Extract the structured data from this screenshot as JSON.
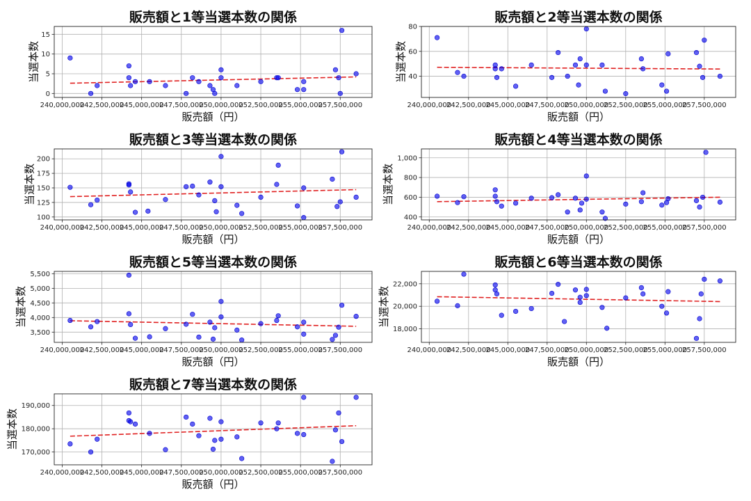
{
  "chart_data": [
    {
      "type": "scatter",
      "title": "販売額と1等当選本数の関係",
      "xlabel": "販売額（円）",
      "ylabel": "当選本数",
      "xlim": [
        239500000,
        259500000
      ],
      "xticks": [
        240000000,
        242500000,
        245000000,
        247500000,
        250000000,
        252500000,
        255000000,
        257500000
      ],
      "ylim": [
        -1,
        17
      ],
      "yticks": [
        0,
        5,
        10,
        15
      ],
      "grid": true,
      "series": [
        {
          "name": "当選本数",
          "x": [
            240500000,
            241800000,
            242200000,
            244200000,
            244200000,
            244300000,
            244600000,
            245500000,
            246500000,
            247800000,
            248200000,
            248600000,
            249300000,
            249500000,
            249600000,
            250000000,
            250000000,
            251000000,
            252500000,
            253500000,
            253600000,
            254800000,
            255200000,
            255200000,
            257200000,
            257400000,
            257500000,
            257600000,
            258500000
          ],
          "y": [
            9,
            0,
            2,
            7,
            4,
            2,
            3,
            3,
            2,
            0,
            4,
            3,
            2,
            1,
            0,
            6,
            4,
            2,
            3,
            4,
            4,
            1,
            1,
            3,
            6,
            4,
            0,
            16,
            5
          ]
        }
      ],
      "trend": {
        "x": [
          240500000,
          258500000
        ],
        "y": [
          2.6,
          4.2
        ]
      }
    },
    {
      "type": "scatter",
      "title": "販売額と2等当選本数の関係",
      "xlabel": "販売額（円）",
      "ylabel": "当選本数",
      "xlim": [
        239500000,
        259500000
      ],
      "xticks": [
        240000000,
        242500000,
        245000000,
        247500000,
        250000000,
        252500000,
        255000000,
        257500000
      ],
      "ylim": [
        23,
        80
      ],
      "yticks": [
        40,
        60,
        80
      ],
      "grid": true,
      "series": [
        {
          "name": "当選本数",
          "x": [
            240500000,
            241800000,
            242200000,
            244200000,
            244200000,
            244300000,
            244600000,
            245500000,
            246500000,
            247800000,
            248200000,
            248800000,
            249300000,
            249500000,
            249600000,
            250000000,
            250000000,
            251000000,
            251200000,
            252500000,
            253500000,
            253600000,
            254800000,
            255100000,
            255200000,
            257000000,
            257200000,
            257400000,
            257500000,
            258500000
          ],
          "y": [
            71,
            43,
            40,
            49,
            46,
            39,
            46,
            32,
            49,
            39,
            59,
            40,
            49,
            33,
            54,
            78,
            49,
            49,
            28,
            26,
            54,
            46,
            33,
            28,
            58,
            59,
            48,
            39,
            69,
            40
          ]
        }
      ],
      "trend": {
        "x": [
          240500000,
          258500000
        ],
        "y": [
          47.2,
          45.8
        ]
      }
    },
    {
      "type": "scatter",
      "title": "販売額と3等当選本数の関係",
      "xlabel": "販売額（円）",
      "ylabel": "当選本数",
      "xlim": [
        239500000,
        259500000
      ],
      "xticks": [
        240000000,
        242500000,
        245000000,
        247500000,
        250000000,
        252500000,
        255000000,
        257500000
      ],
      "ylim": [
        95,
        217
      ],
      "yticks": [
        100,
        125,
        150,
        175,
        200
      ],
      "grid": true,
      "series": [
        {
          "name": "当選本数",
          "x": [
            240500000,
            241800000,
            242200000,
            244200000,
            244200000,
            244300000,
            244600000,
            245400000,
            246500000,
            247800000,
            248200000,
            248600000,
            249300000,
            249600000,
            249700000,
            250000000,
            250000000,
            251000000,
            251300000,
            252500000,
            253500000,
            253600000,
            254800000,
            255200000,
            255200000,
            257000000,
            257300000,
            257500000,
            257600000,
            258500000
          ],
          "y": [
            151,
            121,
            129,
            157,
            155,
            143,
            108,
            110,
            130,
            152,
            153,
            138,
            160,
            128,
            109,
            204,
            152,
            120,
            106,
            134,
            156,
            189,
            119,
            99,
            150,
            165,
            118,
            126,
            212,
            134
          ]
        }
      ],
      "trend": {
        "x": [
          240500000,
          258500000
        ],
        "y": [
          135.0,
          147.0
        ]
      }
    },
    {
      "type": "scatter",
      "title": "販売額と4等当選本数の関係",
      "xlabel": "販売額（円）",
      "ylabel": "当選本数",
      "xlim": [
        239500000,
        259500000
      ],
      "xticks": [
        240000000,
        242500000,
        245000000,
        247500000,
        250000000,
        252500000,
        255000000,
        257500000
      ],
      "ylim": [
        370,
        1090
      ],
      "yticks": [
        400,
        600,
        800,
        1000
      ],
      "grid": true,
      "series": [
        {
          "name": "当選本数",
          "x": [
            240500000,
            241800000,
            242200000,
            244200000,
            244200000,
            244300000,
            244600000,
            245500000,
            246500000,
            247800000,
            248200000,
            248800000,
            249300000,
            249600000,
            249700000,
            250000000,
            250000000,
            251000000,
            251200000,
            252500000,
            253500000,
            253600000,
            254800000,
            255100000,
            255200000,
            257000000,
            257200000,
            257400000,
            257600000,
            258500000
          ],
          "y": [
            610,
            545,
            605,
            675,
            610,
            555,
            510,
            540,
            590,
            595,
            625,
            450,
            590,
            470,
            540,
            815,
            580,
            450,
            385,
            530,
            555,
            645,
            520,
            545,
            585,
            565,
            500,
            600,
            1055,
            550
          ]
        }
      ],
      "trend": {
        "x": [
          240500000,
          258500000
        ],
        "y": [
          555,
          600
        ]
      }
    },
    {
      "type": "scatter",
      "title": "販売額と5等当選本数の関係",
      "xlabel": "販売額（円）",
      "ylabel": "当選本数",
      "xlim": [
        239500000,
        259500000
      ],
      "xticks": [
        240000000,
        242500000,
        245000000,
        247500000,
        250000000,
        252500000,
        255000000,
        257500000
      ],
      "ylim": [
        3150,
        5580
      ],
      "yticks": [
        3500,
        4000,
        4500,
        5000,
        5500
      ],
      "grid": true,
      "series": [
        {
          "name": "当選本数",
          "x": [
            240500000,
            241800000,
            242200000,
            244200000,
            244200000,
            244300000,
            244600000,
            245500000,
            246500000,
            247800000,
            248200000,
            248600000,
            249300000,
            249500000,
            249600000,
            250000000,
            250000000,
            251000000,
            251300000,
            252500000,
            253500000,
            253600000,
            254800000,
            255200000,
            255200000,
            257000000,
            257200000,
            257400000,
            257600000,
            258500000
          ],
          "y": [
            3900,
            3680,
            3860,
            5450,
            4130,
            3760,
            3290,
            3340,
            3620,
            3770,
            4110,
            3330,
            3840,
            3260,
            3650,
            4550,
            4020,
            3570,
            3230,
            3790,
            3900,
            4060,
            3680,
            3430,
            3840,
            3250,
            3390,
            3670,
            4420,
            4040
          ]
        }
      ],
      "trend": {
        "x": [
          240500000,
          258500000
        ],
        "y": [
          3890,
          3700
        ]
      }
    },
    {
      "type": "scatter",
      "title": "販売額と6等当選本数の関係",
      "xlabel": "販売額（円）",
      "ylabel": "当選本数",
      "xlim": [
        239500000,
        259500000
      ],
      "xticks": [
        240000000,
        242500000,
        245000000,
        247500000,
        250000000,
        252500000,
        255000000,
        257500000
      ],
      "ylim": [
        16800,
        23100
      ],
      "yticks": [
        18000,
        20000,
        22000
      ],
      "grid": true,
      "series": [
        {
          "name": "当選本数",
          "x": [
            240500000,
            241800000,
            242200000,
            244200000,
            244200000,
            244300000,
            244600000,
            245500000,
            246500000,
            247800000,
            248200000,
            248600000,
            249300000,
            249600000,
            249600000,
            250000000,
            250000000,
            251000000,
            251300000,
            252500000,
            253500000,
            253600000,
            254800000,
            255100000,
            255200000,
            257000000,
            257200000,
            257300000,
            257500000,
            258500000
          ],
          "y": [
            20450,
            20050,
            22850,
            21900,
            21450,
            21100,
            19200,
            19550,
            19800,
            21150,
            21950,
            18650,
            21450,
            20350,
            20800,
            21500,
            20950,
            19900,
            18050,
            20750,
            21650,
            21100,
            20000,
            19400,
            21300,
            17150,
            18900,
            21100,
            22400,
            22250
          ]
        }
      ],
      "trend": {
        "x": [
          240500000,
          258500000
        ],
        "y": [
          20850,
          20420
        ]
      }
    },
    {
      "type": "scatter",
      "title": "販売額と7等当選本数の関係",
      "xlabel": "販売額（円）",
      "ylabel": "当選本数",
      "xlim": [
        239500000,
        259500000
      ],
      "xticks": [
        240000000,
        242500000,
        245000000,
        247500000,
        250000000,
        252500000,
        255000000,
        257500000
      ],
      "ylim": [
        164500,
        195000
      ],
      "yticks": [
        170000,
        180000,
        190000
      ],
      "grid": true,
      "series": [
        {
          "name": "当選本数",
          "x": [
            240500000,
            241800000,
            242200000,
            244200000,
            244200000,
            244300000,
            244600000,
            245500000,
            246500000,
            247800000,
            248200000,
            248600000,
            249300000,
            249500000,
            249600000,
            250000000,
            250000000,
            251000000,
            251300000,
            252500000,
            253500000,
            253600000,
            254800000,
            255200000,
            255200000,
            257000000,
            257200000,
            257400000,
            257600000,
            258500000
          ],
          "y": [
            173500,
            170000,
            175500,
            186800,
            183500,
            183000,
            182000,
            178000,
            171000,
            185000,
            182000,
            177000,
            184500,
            171200,
            175000,
            183000,
            175500,
            176500,
            167200,
            182500,
            180000,
            182500,
            178000,
            193500,
            177500,
            166000,
            179500,
            186800,
            174500,
            193500
          ]
        }
      ],
      "trend": {
        "x": [
          240500000,
          258500000
        ],
        "y": [
          176800,
          181300
        ]
      }
    }
  ],
  "colors": {
    "point": "#0000ee",
    "trend": "#e02020",
    "grid": "#b0b0b0",
    "frame": "#222222"
  }
}
